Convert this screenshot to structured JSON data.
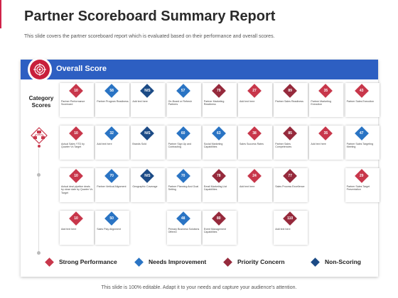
{
  "title": "Partner Scoreboard Summary Report",
  "subtitle": "This slide covers the partner scoreboard report which is evaluated based on their performance and overall scores.",
  "banner": {
    "label": "Overall Score",
    "icon": "target-icon"
  },
  "row_label": "Category Scores",
  "left_icon": "hierarchy-diamond-icon",
  "colors": {
    "strong": "#c8374b",
    "improve": "#2a74c4",
    "priority": "#962a3c",
    "nonscoring": "#1c4b86",
    "banner": "#2d5fc2"
  },
  "rows": [
    [
      {
        "value": "10",
        "label": "Partner Performance Scorecard",
        "status": "strong"
      },
      {
        "value": "58",
        "label": "Partner Program Readiness",
        "status": "improve"
      },
      {
        "value": "N/S",
        "label": "Add text here",
        "status": "nonscoring"
      },
      {
        "value": "57",
        "label": "On-Board or Refresh Partners",
        "status": "improve"
      },
      {
        "value": "79",
        "label": "Partner Marketing Readiness",
        "status": "priority"
      },
      {
        "value": "27",
        "label": "Add text here",
        "status": "strong"
      },
      {
        "value": "89",
        "label": "Partner Sales Readiness",
        "status": "priority"
      },
      {
        "value": "35",
        "label": "Partner Marketing Execution",
        "status": "strong"
      },
      {
        "value": "43",
        "label": "Partner Sales Execution",
        "status": "strong"
      }
    ],
    [
      {
        "value": "10",
        "label": "Actual Sales YTD by Quarter Vs Target",
        "status": "strong"
      },
      {
        "value": "32",
        "label": "Add text here",
        "status": "improve"
      },
      {
        "value": "N/S",
        "label": "Brands Sold",
        "status": "nonscoring"
      },
      {
        "value": "60",
        "label": "Partner Sign Up and Contracting",
        "status": "improve"
      },
      {
        "value": "63",
        "label": "Social Marketing Capabilities",
        "status": "improve"
      },
      {
        "value": "38",
        "label": "Sales Success Rates",
        "status": "strong"
      },
      {
        "value": "85",
        "label": "Partner Sales Competencies",
        "status": "priority"
      },
      {
        "value": "35",
        "label": "Add text here",
        "status": "strong"
      },
      {
        "value": "47",
        "label": "Partner Sales Targeting Meeting",
        "status": "improve"
      }
    ],
    [
      {
        "value": "10",
        "label": "Actual deal pipeline deals by close date by Quarter Vs Target",
        "status": "strong"
      },
      {
        "value": "70",
        "label": "Partner Vertical Alignment",
        "status": "improve"
      },
      {
        "value": "N/S",
        "label": "Geographic Coverage",
        "status": "nonscoring"
      },
      {
        "value": "70",
        "label": "Partner Planning And Goal Setting",
        "status": "improve"
      },
      {
        "value": "78",
        "label": "Email Marketing List Capabilities",
        "status": "priority"
      },
      {
        "value": "24",
        "label": "Add text here",
        "status": "strong"
      },
      {
        "value": "77",
        "label": "Sales Process Excellence",
        "status": "priority"
      },
      null,
      {
        "value": "29",
        "label": "Partner Sales Target Presentation",
        "status": "strong"
      }
    ],
    [
      {
        "value": "10",
        "label": "Add text here",
        "status": "strong"
      },
      {
        "value": "50",
        "label": "Sales Play Alignment",
        "status": "improve"
      },
      null,
      {
        "value": "48",
        "label": "Primary Business Solutions Offered",
        "status": "improve"
      },
      {
        "value": "80",
        "label": "Event Management Capabilities",
        "status": "priority"
      },
      null,
      {
        "value": "110",
        "label": "Add text here",
        "status": "priority"
      },
      null,
      null
    ]
  ],
  "legend": [
    {
      "label": "Strong Performance",
      "status": "strong"
    },
    {
      "label": "Needs Improvement",
      "status": "improve"
    },
    {
      "label": "Priority Concern",
      "status": "priority"
    },
    {
      "label": "Non-Scoring",
      "status": "nonscoring"
    }
  ],
  "footer": "This slide is 100% editable. Adapt it to your needs and capture your audience's attention."
}
